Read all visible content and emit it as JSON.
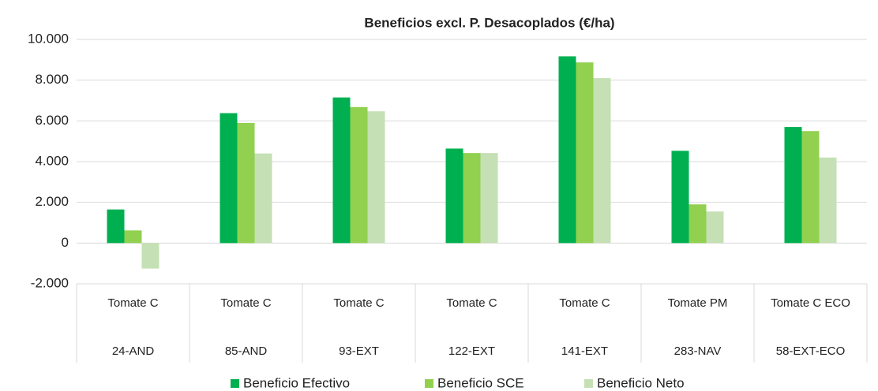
{
  "chart_data": {
    "type": "bar",
    "title": "Beneficios excl. P. Desacoplados (€/ha)",
    "categories": [
      [
        "Tomate C",
        "24-AND"
      ],
      [
        "Tomate C",
        "85-AND"
      ],
      [
        "Tomate C",
        "93-EXT"
      ],
      [
        "Tomate C",
        "122-EXT"
      ],
      [
        "Tomate C",
        "141-EXT"
      ],
      [
        "Tomate PM",
        "283-NAV"
      ],
      [
        "Tomate C ECO",
        "58-EXT-ECO"
      ]
    ],
    "series": [
      {
        "name": "Beneficio Efectivo",
        "color": "#00b050",
        "values": [
          1650,
          6380,
          7150,
          4640,
          9170,
          4530,
          5700
        ]
      },
      {
        "name": "Beneficio SCE",
        "color": "#92d050",
        "values": [
          620,
          5900,
          6680,
          4420,
          8870,
          1900,
          5500
        ]
      },
      {
        "name": "Beneficio Neto",
        "color": "#c5e0b4",
        "values": [
          -1250,
          4400,
          6470,
          4420,
          8100,
          1550,
          4200
        ]
      }
    ],
    "ylim": [
      -2000,
      10000
    ],
    "yticks": [
      {
        "value": -2000,
        "label": "-2.000"
      },
      0,
      {
        "value": 2000,
        "label": "2.000"
      },
      {
        "value": 4000,
        "label": "4.000"
      },
      {
        "value": 6000,
        "label": "6.000"
      },
      {
        "value": 8000,
        "label": "8.000"
      },
      {
        "value": 10000,
        "label": "10.000"
      }
    ],
    "grid": true,
    "legend": "bottom"
  }
}
